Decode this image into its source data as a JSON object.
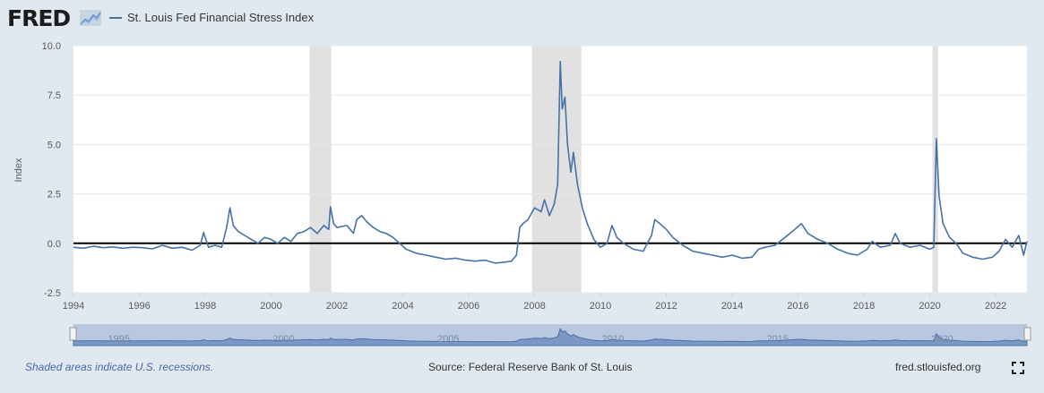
{
  "header": {
    "logo_text": "FRED",
    "logo_icon": "line-graph-icon"
  },
  "chart_data": {
    "type": "line",
    "title": "",
    "xlabel": "",
    "ylabel": "Index",
    "xlim": [
      1994.0,
      2022.95
    ],
    "ylim": [
      -2.5,
      10.0
    ],
    "y_ticks": [
      {
        "value": -2.5,
        "label": "-2.5"
      },
      {
        "value": 0.0,
        "label": "0.0"
      },
      {
        "value": 2.5,
        "label": "2.5"
      },
      {
        "value": 5.0,
        "label": "5.0"
      },
      {
        "value": 7.5,
        "label": "7.5"
      },
      {
        "value": 10.0,
        "label": "10.0"
      }
    ],
    "x_ticks": [
      {
        "value": 1994,
        "label": "1994"
      },
      {
        "value": 1996,
        "label": "1996"
      },
      {
        "value": 1998,
        "label": "1998"
      },
      {
        "value": 2000,
        "label": "2000"
      },
      {
        "value": 2002,
        "label": "2002"
      },
      {
        "value": 2004,
        "label": "2004"
      },
      {
        "value": 2006,
        "label": "2006"
      },
      {
        "value": 2008,
        "label": "2008"
      },
      {
        "value": 2010,
        "label": "2010"
      },
      {
        "value": 2012,
        "label": "2012"
      },
      {
        "value": 2014,
        "label": "2014"
      },
      {
        "value": 2016,
        "label": "2016"
      },
      {
        "value": 2018,
        "label": "2018"
      },
      {
        "value": 2020,
        "label": "2020"
      },
      {
        "value": 2022,
        "label": "2022"
      }
    ],
    "recessions": [
      [
        2001.17,
        2001.83
      ],
      [
        2007.92,
        2009.42
      ],
      [
        2020.08,
        2020.25
      ]
    ],
    "zero_line": 0.0,
    "series": [
      {
        "name": "St. Louis Fed Financial Stress Index",
        "color": "#4572a7",
        "points": [
          [
            1994.0,
            -0.2
          ],
          [
            1994.3,
            -0.25
          ],
          [
            1994.6,
            -0.15
          ],
          [
            1994.9,
            -0.22
          ],
          [
            1995.2,
            -0.18
          ],
          [
            1995.5,
            -0.25
          ],
          [
            1995.8,
            -0.2
          ],
          [
            1996.1,
            -0.22
          ],
          [
            1996.4,
            -0.28
          ],
          [
            1996.7,
            -0.1
          ],
          [
            1997.0,
            -0.25
          ],
          [
            1997.3,
            -0.2
          ],
          [
            1997.6,
            -0.35
          ],
          [
            1997.85,
            -0.1
          ],
          [
            1997.95,
            0.55
          ],
          [
            1998.1,
            -0.2
          ],
          [
            1998.3,
            -0.1
          ],
          [
            1998.5,
            -0.2
          ],
          [
            1998.65,
            0.8
          ],
          [
            1998.75,
            1.8
          ],
          [
            1998.85,
            0.9
          ],
          [
            1999.0,
            0.6
          ],
          [
            1999.2,
            0.4
          ],
          [
            1999.4,
            0.2
          ],
          [
            1999.6,
            0.0
          ],
          [
            1999.8,
            0.3
          ],
          [
            2000.0,
            0.2
          ],
          [
            2000.2,
            0.0
          ],
          [
            2000.4,
            0.3
          ],
          [
            2000.6,
            0.1
          ],
          [
            2000.8,
            0.5
          ],
          [
            2001.0,
            0.6
          ],
          [
            2001.2,
            0.8
          ],
          [
            2001.4,
            0.5
          ],
          [
            2001.6,
            0.9
          ],
          [
            2001.75,
            0.7
          ],
          [
            2001.8,
            1.85
          ],
          [
            2001.9,
            1.0
          ],
          [
            2002.0,
            0.8
          ],
          [
            2002.3,
            0.9
          ],
          [
            2002.5,
            0.5
          ],
          [
            2002.6,
            1.2
          ],
          [
            2002.75,
            1.4
          ],
          [
            2002.9,
            1.1
          ],
          [
            2003.1,
            0.8
          ],
          [
            2003.3,
            0.6
          ],
          [
            2003.5,
            0.5
          ],
          [
            2003.7,
            0.3
          ],
          [
            2003.9,
            0.0
          ],
          [
            2004.1,
            -0.3
          ],
          [
            2004.4,
            -0.5
          ],
          [
            2004.7,
            -0.6
          ],
          [
            2005.0,
            -0.7
          ],
          [
            2005.3,
            -0.8
          ],
          [
            2005.6,
            -0.75
          ],
          [
            2005.9,
            -0.85
          ],
          [
            2006.2,
            -0.9
          ],
          [
            2006.5,
            -0.85
          ],
          [
            2006.8,
            -1.0
          ],
          [
            2007.1,
            -0.95
          ],
          [
            2007.3,
            -0.9
          ],
          [
            2007.45,
            -0.6
          ],
          [
            2007.55,
            0.8
          ],
          [
            2007.65,
            1.0
          ],
          [
            2007.8,
            1.2
          ],
          [
            2008.0,
            1.8
          ],
          [
            2008.2,
            1.6
          ],
          [
            2008.3,
            2.2
          ],
          [
            2008.45,
            1.4
          ],
          [
            2008.6,
            2.0
          ],
          [
            2008.7,
            3.0
          ],
          [
            2008.78,
            9.2
          ],
          [
            2008.84,
            6.8
          ],
          [
            2008.92,
            7.4
          ],
          [
            2009.0,
            5.0
          ],
          [
            2009.1,
            3.6
          ],
          [
            2009.18,
            4.6
          ],
          [
            2009.3,
            3.0
          ],
          [
            2009.45,
            1.8
          ],
          [
            2009.6,
            1.0
          ],
          [
            2009.8,
            0.2
          ],
          [
            2010.0,
            -0.2
          ],
          [
            2010.2,
            0.0
          ],
          [
            2010.35,
            0.9
          ],
          [
            2010.5,
            0.3
          ],
          [
            2010.7,
            0.0
          ],
          [
            2011.0,
            -0.3
          ],
          [
            2011.3,
            -0.4
          ],
          [
            2011.55,
            0.4
          ],
          [
            2011.65,
            1.2
          ],
          [
            2011.8,
            1.0
          ],
          [
            2012.0,
            0.7
          ],
          [
            2012.2,
            0.3
          ],
          [
            2012.5,
            -0.1
          ],
          [
            2012.8,
            -0.4
          ],
          [
            2013.1,
            -0.5
          ],
          [
            2013.4,
            -0.6
          ],
          [
            2013.7,
            -0.7
          ],
          [
            2014.0,
            -0.6
          ],
          [
            2014.3,
            -0.75
          ],
          [
            2014.6,
            -0.7
          ],
          [
            2014.8,
            -0.3
          ],
          [
            2015.0,
            -0.2
          ],
          [
            2015.3,
            -0.1
          ],
          [
            2015.6,
            0.3
          ],
          [
            2015.9,
            0.7
          ],
          [
            2016.1,
            1.0
          ],
          [
            2016.3,
            0.5
          ],
          [
            2016.6,
            0.2
          ],
          [
            2016.9,
            0.0
          ],
          [
            2017.2,
            -0.3
          ],
          [
            2017.5,
            -0.5
          ],
          [
            2017.8,
            -0.6
          ],
          [
            2018.1,
            -0.3
          ],
          [
            2018.25,
            0.1
          ],
          [
            2018.5,
            -0.2
          ],
          [
            2018.8,
            -0.1
          ],
          [
            2018.95,
            0.5
          ],
          [
            2019.1,
            0.0
          ],
          [
            2019.4,
            -0.2
          ],
          [
            2019.7,
            -0.1
          ],
          [
            2020.0,
            -0.3
          ],
          [
            2020.12,
            -0.2
          ],
          [
            2020.2,
            5.3
          ],
          [
            2020.28,
            2.4
          ],
          [
            2020.4,
            1.0
          ],
          [
            2020.6,
            0.3
          ],
          [
            2020.8,
            0.0
          ],
          [
            2021.0,
            -0.5
          ],
          [
            2021.3,
            -0.7
          ],
          [
            2021.6,
            -0.8
          ],
          [
            2021.9,
            -0.7
          ],
          [
            2022.1,
            -0.4
          ],
          [
            2022.3,
            0.2
          ],
          [
            2022.5,
            -0.2
          ],
          [
            2022.7,
            0.4
          ],
          [
            2022.85,
            -0.6
          ],
          [
            2022.95,
            0.1
          ]
        ]
      }
    ],
    "navigator": {
      "tick_labels": [
        "1995",
        "2000",
        "2005",
        "2010",
        "2015",
        "2020"
      ],
      "tick_values": [
        1995,
        2000,
        2005,
        2010,
        2015,
        2020
      ]
    }
  },
  "footer": {
    "note": "Shaded areas indicate U.S. recessions.",
    "source": "Source: Federal Reserve Bank of St. Louis",
    "site": "fred.stlouisfed.org",
    "fullscreen_icon": "fullscreen-icon"
  }
}
